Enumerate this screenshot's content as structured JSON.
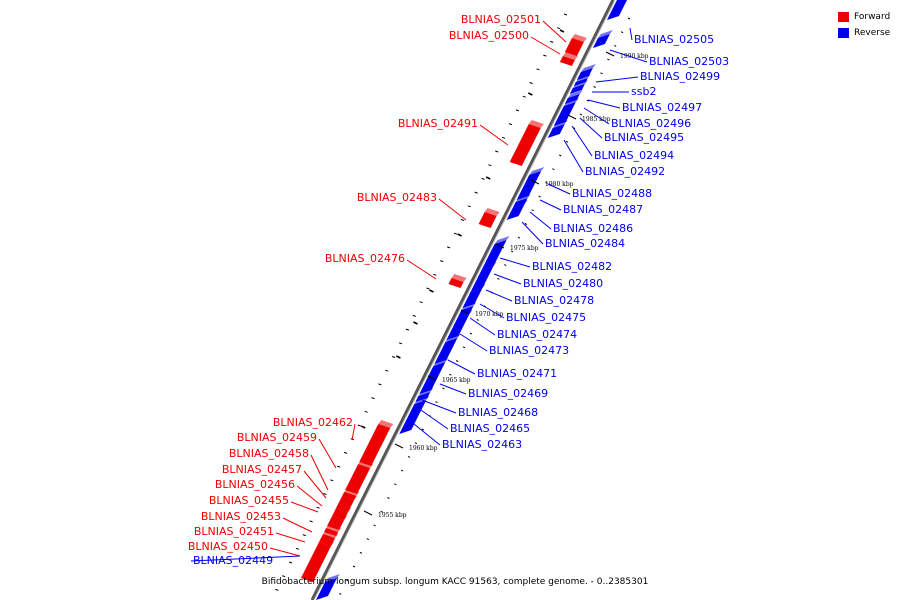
{
  "caption": "Bifidobacterium longum subsp. longum KACC 91563, complete genome. - 0..2385301",
  "legend": [
    {
      "label": "Forward",
      "color": "#ee0000"
    },
    {
      "label": "Reverse",
      "color": "#0000ee"
    }
  ],
  "colors": {
    "forward": "#ee0000",
    "reverse": "#0000ee",
    "backbone": "#888888"
  },
  "ticks": [
    "1990 kbp",
    "1985 kbp",
    "1980 kbp",
    "1975 kbp",
    "1970 kbp",
    "1965 kbp",
    "1960 kbp",
    "1955 kbp"
  ],
  "genes_forward": [
    "BLNIAS_02501",
    "BLNIAS_02500",
    "BLNIAS_02491",
    "BLNIAS_02483",
    "BLNIAS_02476",
    "BLNIAS_02462",
    "BLNIAS_02459",
    "BLNIAS_02458",
    "BLNIAS_02457",
    "BLNIAS_02456",
    "BLNIAS_02455",
    "BLNIAS_02453",
    "BLNIAS_02451",
    "BLNIAS_02450"
  ],
  "genes_reverse": [
    "BLNIAS_02505",
    "BLNIAS_02503",
    "BLNIAS_02499",
    "ssb2",
    "BLNIAS_02497",
    "BLNIAS_02496",
    "BLNIAS_02495",
    "BLNIAS_02494",
    "BLNIAS_02492",
    "BLNIAS_02488",
    "BLNIAS_02487",
    "BLNIAS_02486",
    "BLNIAS_02484",
    "BLNIAS_02482",
    "BLNIAS_02480",
    "BLNIAS_02478",
    "BLNIAS_02475",
    "BLNIAS_02474",
    "BLNIAS_02473",
    "BLNIAS_02471",
    "BLNIAS_02469",
    "BLNIAS_02468",
    "BLNIAS_02465",
    "BLNIAS_02463",
    "BLNIAS_02449"
  ]
}
